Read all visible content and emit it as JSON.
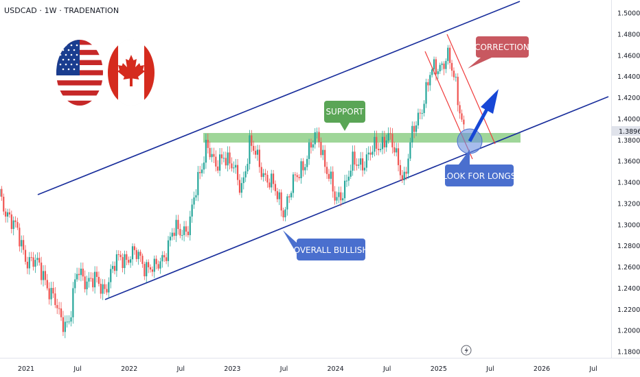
{
  "header": {
    "title": "USDCAD · 1W · TRADENATION"
  },
  "icons": {
    "usa_flag": "usa-flag-icon",
    "canada_flag": "canada-flag-icon",
    "lightning": "lightning-icon"
  },
  "colors": {
    "up": "#26a69a",
    "down": "#ef5350",
    "channel": "#1a2f9c",
    "support_zone": "#87cc7f",
    "support_label": "#5aa556",
    "correction_label": "#c85860",
    "blue_label": "#4a6fce",
    "arrow": "#1747d6",
    "correction_lines": "#f03a3a"
  },
  "annotations": {
    "support": "SUPPORT",
    "correction": "CORRECTION",
    "look_for_longs": "LOOK FOR LONGS",
    "overall_bullish": "OVERALL BULLISH"
  },
  "price_axis": {
    "labels": [
      "1.50000",
      "1.48000",
      "1.46000",
      "1.44000",
      "1.42000",
      "1.40000",
      "1.38000",
      "1.36000",
      "1.34000",
      "1.32000",
      "1.30000",
      "1.28000",
      "1.26000",
      "1.24000",
      "1.22000",
      "1.20000",
      "1.18000"
    ],
    "current_price": "1.38966"
  },
  "time_axis": {
    "labels": [
      "2021",
      "Jul",
      "2022",
      "Jul",
      "2023",
      "Jul",
      "2024",
      "Jul",
      "2025",
      "Jul",
      "2026",
      "Jul"
    ]
  },
  "chart_data": {
    "type": "candlestick",
    "symbol": "USDCAD",
    "interval": "1W",
    "ylim": [
      1.17,
      1.505
    ],
    "xlim": [
      "2020-10",
      "2026-10"
    ],
    "support_zone": [
      1.378,
      1.388
    ],
    "channel_upper": {
      "from": [
        "2020-12",
        1.33
      ],
      "to": [
        "2025-09",
        1.5
      ]
    },
    "channel_lower": {
      "from": [
        "2021-10",
        1.23
      ],
      "to": [
        "2026-09",
        1.42
      ]
    },
    "close_path": [
      [
        "2020-09",
        1.34
      ],
      [
        "2020-11",
        1.31
      ],
      [
        "2021-01",
        1.27
      ],
      [
        "2021-03",
        1.255
      ],
      [
        "2021-05",
        1.21
      ],
      [
        "2021-06",
        1.21
      ],
      [
        "2021-07",
        1.255
      ],
      [
        "2021-08",
        1.25
      ],
      [
        "2021-10",
        1.24
      ],
      [
        "2021-12",
        1.27
      ],
      [
        "2022-02",
        1.27
      ],
      [
        "2022-04",
        1.255
      ],
      [
        "2022-06",
        1.29
      ],
      [
        "2022-08",
        1.3
      ],
      [
        "2022-10",
        1.38
      ],
      [
        "2022-11",
        1.35
      ],
      [
        "2022-12",
        1.37
      ],
      [
        "2023-02",
        1.335
      ],
      [
        "2023-03",
        1.375
      ],
      [
        "2023-05",
        1.345
      ],
      [
        "2023-06",
        1.33
      ],
      [
        "2023-07",
        1.315
      ],
      [
        "2023-09",
        1.355
      ],
      [
        "2023-11",
        1.385
      ],
      [
        "2024-01",
        1.32
      ],
      [
        "2024-03",
        1.355
      ],
      [
        "2024-05",
        1.365
      ],
      [
        "2024-07",
        1.385
      ],
      [
        "2024-09",
        1.345
      ],
      [
        "2024-10",
        1.385
      ],
      [
        "2024-12",
        1.44
      ],
      [
        "2025-02",
        1.46
      ],
      [
        "2025-03",
        1.43
      ],
      [
        "2025-04",
        1.39
      ]
    ],
    "last_price": 1.38966
  }
}
